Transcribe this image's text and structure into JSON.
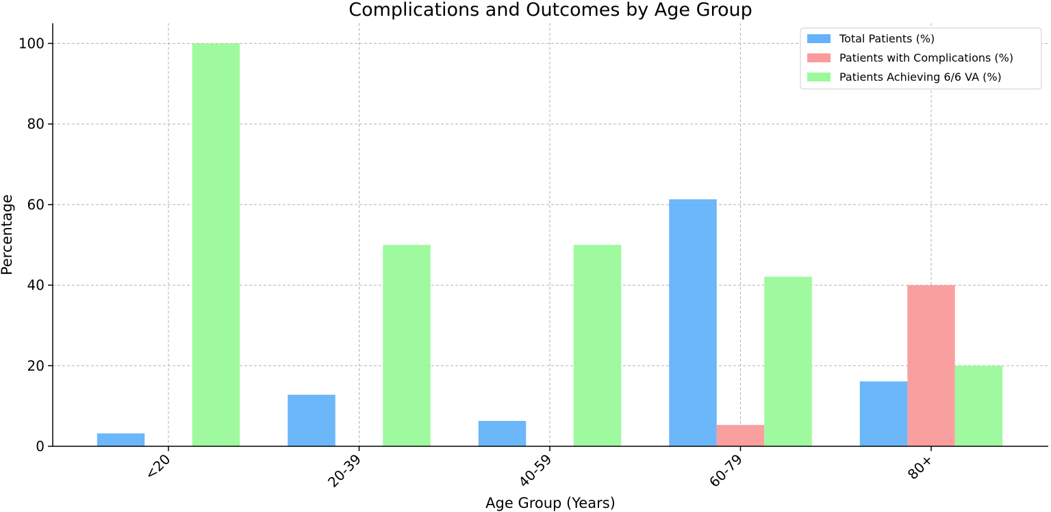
{
  "chart_data": {
    "type": "bar",
    "title": "Complications and Outcomes by Age Group",
    "xlabel": "Age Group (Years)",
    "ylabel": "Percentage",
    "categories": [
      "<20",
      "20-39",
      "40-59",
      "60-79",
      "80+"
    ],
    "ylim": [
      0,
      105
    ],
    "yticks": [
      0,
      20,
      40,
      60,
      80,
      100
    ],
    "grid": true,
    "legend_position": "top-right",
    "series": [
      {
        "name": "Total Patients (%)",
        "color": "#64b2fa",
        "values": [
          3.2,
          12.8,
          6.3,
          61.3,
          16.1
        ]
      },
      {
        "name": "Patients with Complications (%)",
        "color": "#fa9a9a",
        "values": [
          0,
          0,
          0,
          5.3,
          40
        ]
      },
      {
        "name": "Patients Achieving 6/6 VA (%)",
        "color": "#9afa9a",
        "values": [
          100,
          50,
          50,
          42.1,
          20
        ]
      }
    ]
  }
}
